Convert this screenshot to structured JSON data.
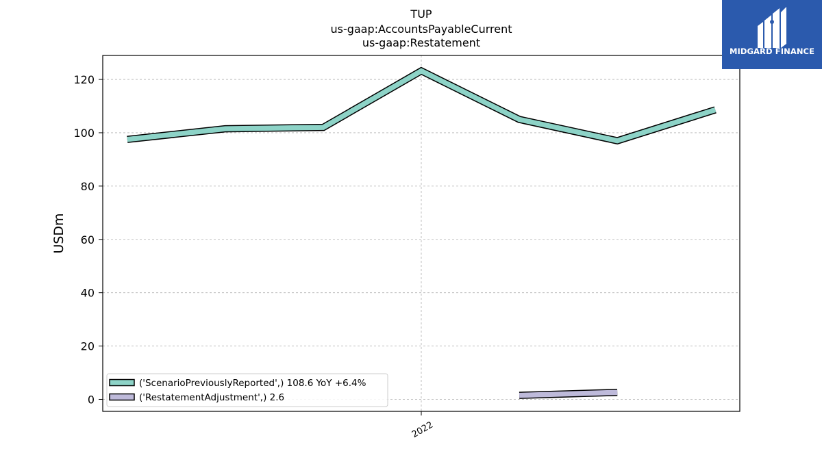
{
  "chart_data": {
    "type": "line",
    "title": [
      "TUP",
      "us-gaap:AccountsPayableCurrent",
      "us-gaap:Restatement"
    ],
    "ylabel": "USDm",
    "xlabel": "",
    "ylim": [
      -4.5,
      129
    ],
    "yticks": [
      0,
      20,
      40,
      60,
      80,
      100,
      120
    ],
    "xticks": [
      {
        "label": "2022",
        "x": 4
      }
    ],
    "grid": true,
    "legend_position": "lower-left",
    "series": [
      {
        "name": "('ScenarioPreviouslyReported',)",
        "legend_label": "('ScenarioPreviouslyReported',) 108.6 YoY +6.4%",
        "color": "#8dd3c7",
        "x": [
          1,
          2,
          3,
          4,
          5,
          6,
          7
        ],
        "values": [
          97.5,
          101.5,
          102.0,
          123.2,
          105.0,
          97.0,
          108.6
        ]
      },
      {
        "name": "('RestatementAdjustment',)",
        "legend_label": "('RestatementAdjustment',) 2.6",
        "color": "#bebada",
        "x": [
          5,
          6
        ],
        "values": [
          1.5,
          2.6
        ]
      }
    ]
  },
  "logo": {
    "text": "MIDGARD FINANCE"
  }
}
